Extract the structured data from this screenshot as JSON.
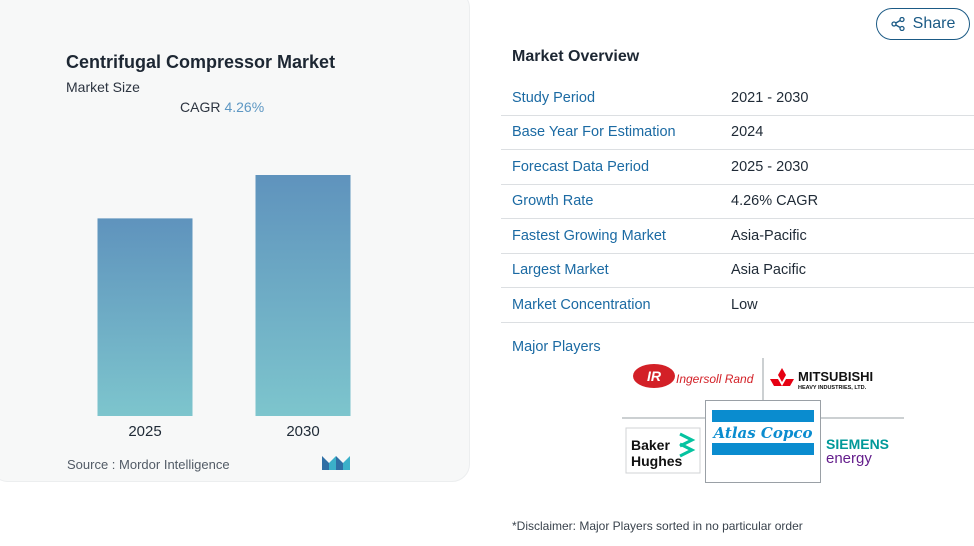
{
  "chart_data": {
    "type": "bar",
    "title": "Centrifugal Compressor Market",
    "subtitle": "Market Size",
    "categories": [
      "2025",
      "2030"
    ],
    "values": [
      0.82,
      1.0
    ],
    "cagr_label": "CAGR",
    "cagr_value": "4.26%",
    "bar_gradient": [
      "#5f93bd",
      "#7dc5cd"
    ]
  },
  "source": {
    "label": "Source :",
    "name": "Mordor Intelligence"
  },
  "share": {
    "label": "Share"
  },
  "overview": {
    "title": "Market Overview",
    "rows": [
      {
        "label": "Study Period",
        "value": "2021 - 2030"
      },
      {
        "label": "Base Year For Estimation",
        "value": "2024"
      },
      {
        "label": "Forecast Data Period",
        "value": "2025 - 2030"
      },
      {
        "label": "Growth Rate",
        "value": "4.26% CAGR"
      },
      {
        "label": "Fastest Growing Market",
        "value": "Asia-Pacific"
      },
      {
        "label": "Largest Market",
        "value": "Asia Pacific"
      },
      {
        "label": "Market Concentration",
        "value": "Low"
      }
    ]
  },
  "players": {
    "label": "Major Players",
    "logos": {
      "ingersoll": {
        "mark": "IR",
        "text": "Ingersoll Rand"
      },
      "mitsubishi": {
        "line1": "MITSUBISHI",
        "line2": "HEAVY INDUSTRIES, LTD."
      },
      "baker": {
        "line1": "Baker",
        "line2": "Hughes"
      },
      "atlas": {
        "text": "Atlas Copco"
      },
      "siemens": {
        "line1": "SIEMENS",
        "line2": "energy"
      }
    }
  },
  "disclaimer": "*Disclaimer: Major Players sorted in no particular order",
  "colors": {
    "accent": "#1b6aa3",
    "cagr": "#5d97c3",
    "ingersoll_red": "#d32027",
    "mitsubishi_red": "#e60012",
    "atlas_blue": "#0a8ccf",
    "baker_green": "#05c3a0",
    "siemens_teal": "#009999",
    "siemens_purple": "#641e8c"
  }
}
